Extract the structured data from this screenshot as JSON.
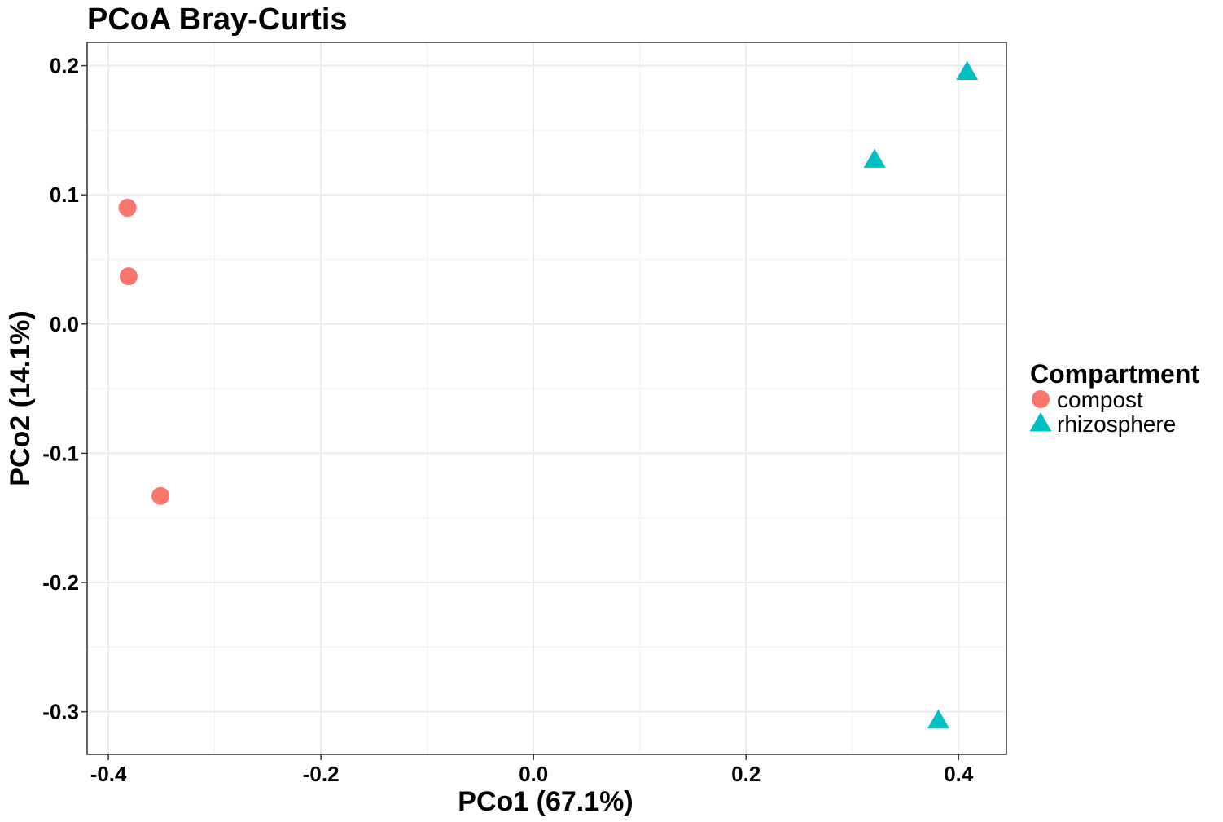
{
  "chart_data": {
    "type": "scatter",
    "title": "PCoA Bray-Curtis",
    "xlabel": "PCo1 (67.1%)",
    "ylabel": "PCo2 (14.1%)",
    "xlim": [
      -0.42,
      0.445
    ],
    "ylim": [
      -0.333,
      0.218
    ],
    "x_ticks": [
      -0.4,
      -0.2,
      0.0,
      0.2,
      0.4
    ],
    "x_tick_labels": [
      "-0.4",
      "-0.2",
      "0.0",
      "0.2",
      "0.4"
    ],
    "y_ticks": [
      -0.3,
      -0.2,
      -0.1,
      0.0,
      0.1,
      0.2
    ],
    "y_tick_labels": [
      "-0.3",
      "-0.2",
      "-0.1",
      "0.0",
      "0.1",
      "0.2"
    ],
    "grid": true,
    "legend": {
      "title": "Compartment",
      "placement": "right"
    },
    "series": [
      {
        "name": "compost",
        "marker": "circle",
        "color": "#F8766D",
        "points": [
          {
            "x": -0.382,
            "y": 0.09
          },
          {
            "x": -0.381,
            "y": 0.037
          },
          {
            "x": -0.351,
            "y": -0.133
          }
        ]
      },
      {
        "name": "rhizosphere",
        "marker": "triangle",
        "color": "#00BFC4",
        "points": [
          {
            "x": 0.408,
            "y": 0.195
          },
          {
            "x": 0.321,
            "y": 0.127
          },
          {
            "x": 0.381,
            "y": -0.307
          }
        ]
      }
    ]
  }
}
